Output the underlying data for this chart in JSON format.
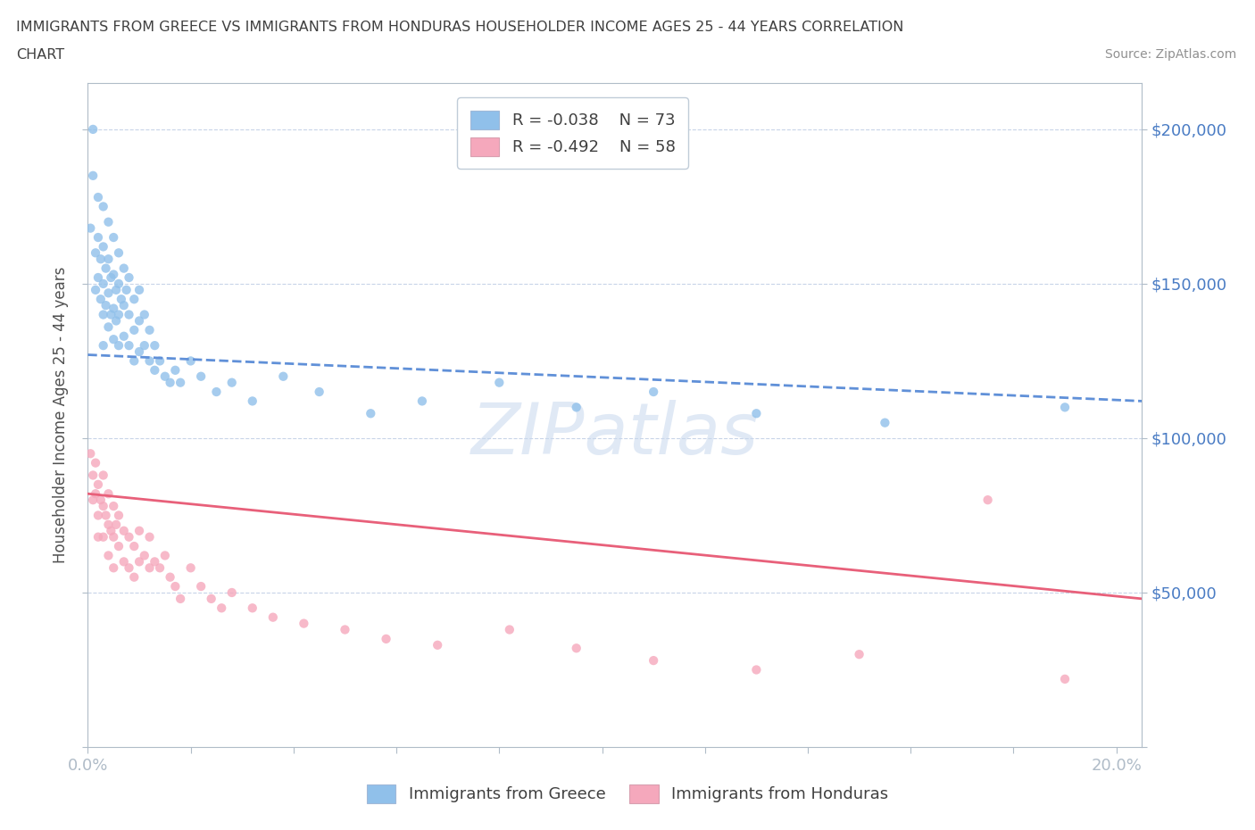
{
  "title_line1": "IMMIGRANTS FROM GREECE VS IMMIGRANTS FROM HONDURAS HOUSEHOLDER INCOME AGES 25 - 44 YEARS CORRELATION",
  "title_line2": "CHART",
  "source_text": "Source: ZipAtlas.com",
  "ylabel": "Householder Income Ages 25 - 44 years",
  "xlim": [
    0.0,
    0.205
  ],
  "ylim": [
    0,
    215000
  ],
  "yticks": [
    0,
    50000,
    100000,
    150000,
    200000
  ],
  "ytick_labels_right": [
    "",
    "$50,000",
    "$100,000",
    "$150,000",
    "$200,000"
  ],
  "xtick_positions": [
    0.0,
    0.02,
    0.04,
    0.06,
    0.08,
    0.1,
    0.12,
    0.14,
    0.16,
    0.18,
    0.2
  ],
  "xtick_labels": [
    "0.0%",
    "",
    "",
    "",
    "",
    "",
    "",
    "",
    "",
    "",
    "20.0%"
  ],
  "greece_color": "#90c0ea",
  "honduras_color": "#f5a8bc",
  "greece_line_color": "#6090d8",
  "honduras_line_color": "#e8607a",
  "greece_R": -0.038,
  "greece_N": 73,
  "honduras_R": -0.492,
  "honduras_N": 58,
  "watermark": "ZIPatlas",
  "background_color": "#ffffff",
  "grid_color": "#c8d4e8",
  "axis_color": "#b0bcc8",
  "tick_label_color": "#4a7cc4",
  "greece_scatter_x": [
    0.0005,
    0.001,
    0.001,
    0.0015,
    0.0015,
    0.002,
    0.002,
    0.002,
    0.0025,
    0.0025,
    0.003,
    0.003,
    0.003,
    0.003,
    0.003,
    0.0035,
    0.0035,
    0.004,
    0.004,
    0.004,
    0.004,
    0.0045,
    0.0045,
    0.005,
    0.005,
    0.005,
    0.005,
    0.0055,
    0.0055,
    0.006,
    0.006,
    0.006,
    0.006,
    0.0065,
    0.007,
    0.007,
    0.007,
    0.0075,
    0.008,
    0.008,
    0.008,
    0.009,
    0.009,
    0.009,
    0.01,
    0.01,
    0.01,
    0.011,
    0.011,
    0.012,
    0.012,
    0.013,
    0.013,
    0.014,
    0.015,
    0.016,
    0.017,
    0.018,
    0.02,
    0.022,
    0.025,
    0.028,
    0.032,
    0.038,
    0.045,
    0.055,
    0.065,
    0.08,
    0.095,
    0.11,
    0.13,
    0.155,
    0.19
  ],
  "greece_scatter_y": [
    168000,
    200000,
    185000,
    160000,
    148000,
    178000,
    165000,
    152000,
    158000,
    145000,
    175000,
    162000,
    150000,
    140000,
    130000,
    155000,
    143000,
    170000,
    158000,
    147000,
    136000,
    152000,
    140000,
    165000,
    153000,
    142000,
    132000,
    148000,
    138000,
    160000,
    150000,
    140000,
    130000,
    145000,
    155000,
    143000,
    133000,
    148000,
    152000,
    140000,
    130000,
    145000,
    135000,
    125000,
    148000,
    138000,
    128000,
    140000,
    130000,
    135000,
    125000,
    130000,
    122000,
    125000,
    120000,
    118000,
    122000,
    118000,
    125000,
    120000,
    115000,
    118000,
    112000,
    120000,
    115000,
    108000,
    112000,
    118000,
    110000,
    115000,
    108000,
    105000,
    110000
  ],
  "honduras_scatter_x": [
    0.0005,
    0.001,
    0.001,
    0.0015,
    0.0015,
    0.002,
    0.002,
    0.002,
    0.0025,
    0.003,
    0.003,
    0.003,
    0.0035,
    0.004,
    0.004,
    0.004,
    0.0045,
    0.005,
    0.005,
    0.005,
    0.0055,
    0.006,
    0.006,
    0.007,
    0.007,
    0.008,
    0.008,
    0.009,
    0.009,
    0.01,
    0.01,
    0.011,
    0.012,
    0.012,
    0.013,
    0.014,
    0.015,
    0.016,
    0.017,
    0.018,
    0.02,
    0.022,
    0.024,
    0.026,
    0.028,
    0.032,
    0.036,
    0.042,
    0.05,
    0.058,
    0.068,
    0.082,
    0.095,
    0.11,
    0.13,
    0.15,
    0.175,
    0.19
  ],
  "honduras_scatter_y": [
    95000,
    88000,
    80000,
    92000,
    82000,
    85000,
    75000,
    68000,
    80000,
    88000,
    78000,
    68000,
    75000,
    82000,
    72000,
    62000,
    70000,
    78000,
    68000,
    58000,
    72000,
    75000,
    65000,
    70000,
    60000,
    68000,
    58000,
    65000,
    55000,
    70000,
    60000,
    62000,
    68000,
    58000,
    60000,
    58000,
    62000,
    55000,
    52000,
    48000,
    58000,
    52000,
    48000,
    45000,
    50000,
    45000,
    42000,
    40000,
    38000,
    35000,
    33000,
    38000,
    32000,
    28000,
    25000,
    30000,
    80000,
    22000
  ]
}
